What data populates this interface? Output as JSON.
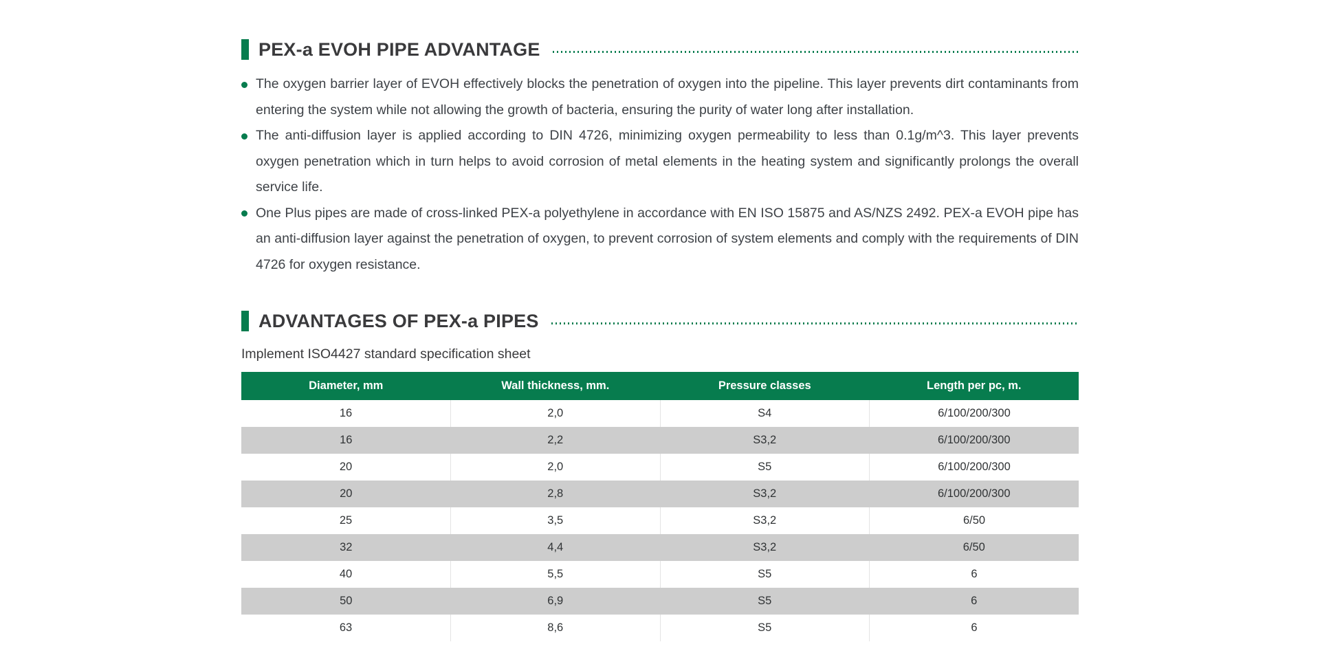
{
  "colors": {
    "accent_green": "#077C4E",
    "row_gray": "#CDCDCD",
    "heading_text": "#3A3A3C",
    "body_text": "#3E4247",
    "header_text_on_green": "#FFFFFF"
  },
  "section1": {
    "title": "PEX-a EVOH PIPE ADVANTAGE",
    "bullets": [
      "The oxygen barrier layer of EVOH effectively blocks the penetration of oxygen into the pipeline. This layer prevents dirt contaminants from entering the system while not allowing the growth of bacteria, ensuring the purity of water long after installation.",
      "The anti-diffusion layer is applied according to DIN 4726, minimizing oxygen permeability to less than 0.1g/m^3. This layer prevents oxygen penetration which in turn helps to avoid corrosion of metal elements in the heating system and significantly prolongs the overall service life.",
      "One Plus pipes are made of cross-linked PEX-a polyethylene in accordance with EN ISO 15875 and AS/NZS 2492. PEX-a EVOH pipe has an anti-diffusion layer against the penetration of oxygen, to prevent corrosion of system elements and comply with the requirements of DIN 4726 for oxygen resistance."
    ]
  },
  "section2": {
    "title": "ADVANTAGES OF PEX-a PIPES",
    "caption": "Implement ISO4427 standard specification sheet",
    "table": {
      "headers": [
        "Diameter, mm",
        "Wall thickness, mm.",
        "Pressure classes",
        "Length per pc, m."
      ],
      "rows": [
        [
          "16",
          "2,0",
          "S4",
          "6/100/200/300"
        ],
        [
          "16",
          "2,2",
          "S3,2",
          "6/100/200/300"
        ],
        [
          "20",
          "2,0",
          "S5",
          "6/100/200/300"
        ],
        [
          "20",
          "2,8",
          "S3,2",
          "6/100/200/300"
        ],
        [
          "25",
          "3,5",
          "S3,2",
          "6/50"
        ],
        [
          "32",
          "4,4",
          "S3,2",
          "6/50"
        ],
        [
          "40",
          "5,5",
          "S5",
          "6"
        ],
        [
          "50",
          "6,9",
          "S5",
          "6"
        ],
        [
          "63",
          "8,6",
          "S5",
          "6"
        ]
      ]
    }
  }
}
